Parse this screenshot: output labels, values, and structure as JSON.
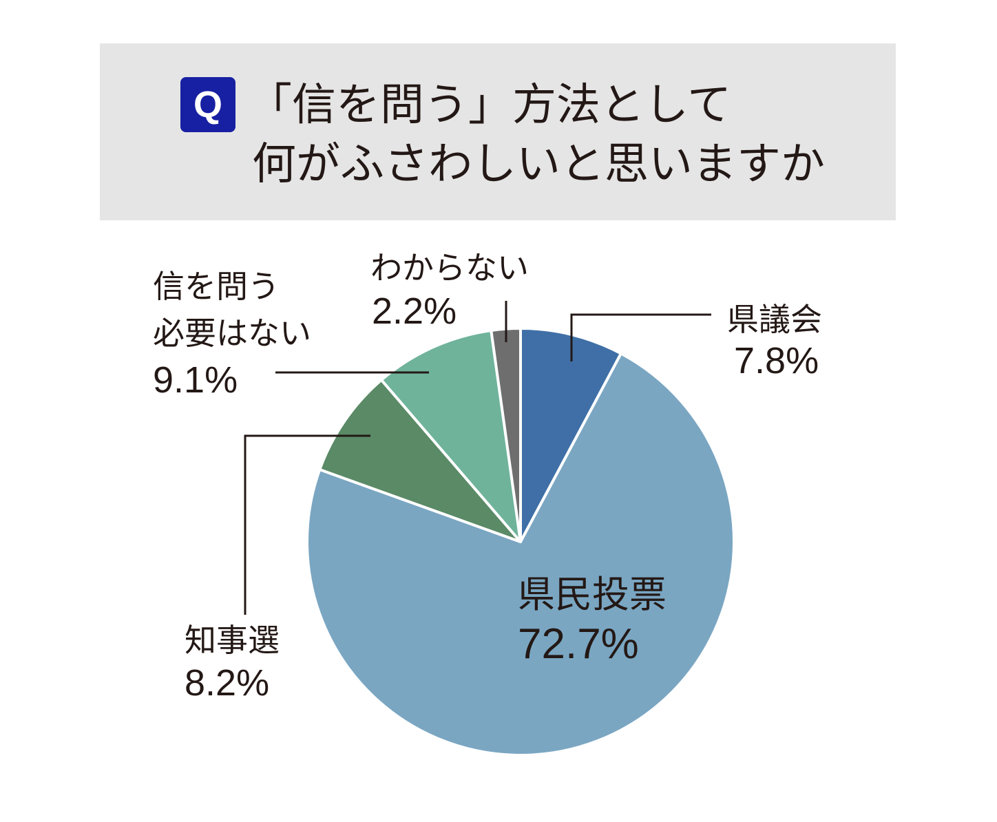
{
  "question": {
    "badge": "Q",
    "line1": "「信を問う」方法として",
    "line2": "何がふさわしいと思いますか"
  },
  "chart_data": {
    "type": "pie",
    "title": "「信を問う」方法として何がふさわしいと思いますか",
    "slices": [
      {
        "label": "県議会",
        "label_lines": [
          "県議会"
        ],
        "value": 7.8,
        "value_label": "7.8%",
        "color": "#3f6fa6"
      },
      {
        "label": "県民投票",
        "label_lines": [
          "県民投票"
        ],
        "value": 72.7,
        "value_label": "72.7%",
        "color": "#7aa6c2"
      },
      {
        "label": "知事選",
        "label_lines": [
          "知事選"
        ],
        "value": 8.2,
        "value_label": "8.2%",
        "color": "#5a8a66"
      },
      {
        "label": "信を問う必要はない",
        "label_lines": [
          "信を問う",
          "必要はない"
        ],
        "value": 9.1,
        "value_label": "9.1%",
        "color": "#6fb39b"
      },
      {
        "label": "わからない",
        "label_lines": [
          "わからない"
        ],
        "value": 2.2,
        "value_label": "2.2%",
        "color": "#6e6e6e"
      }
    ],
    "start_angle_deg": 0,
    "direction": "clockwise",
    "slice_border_color": "#ffffff"
  }
}
